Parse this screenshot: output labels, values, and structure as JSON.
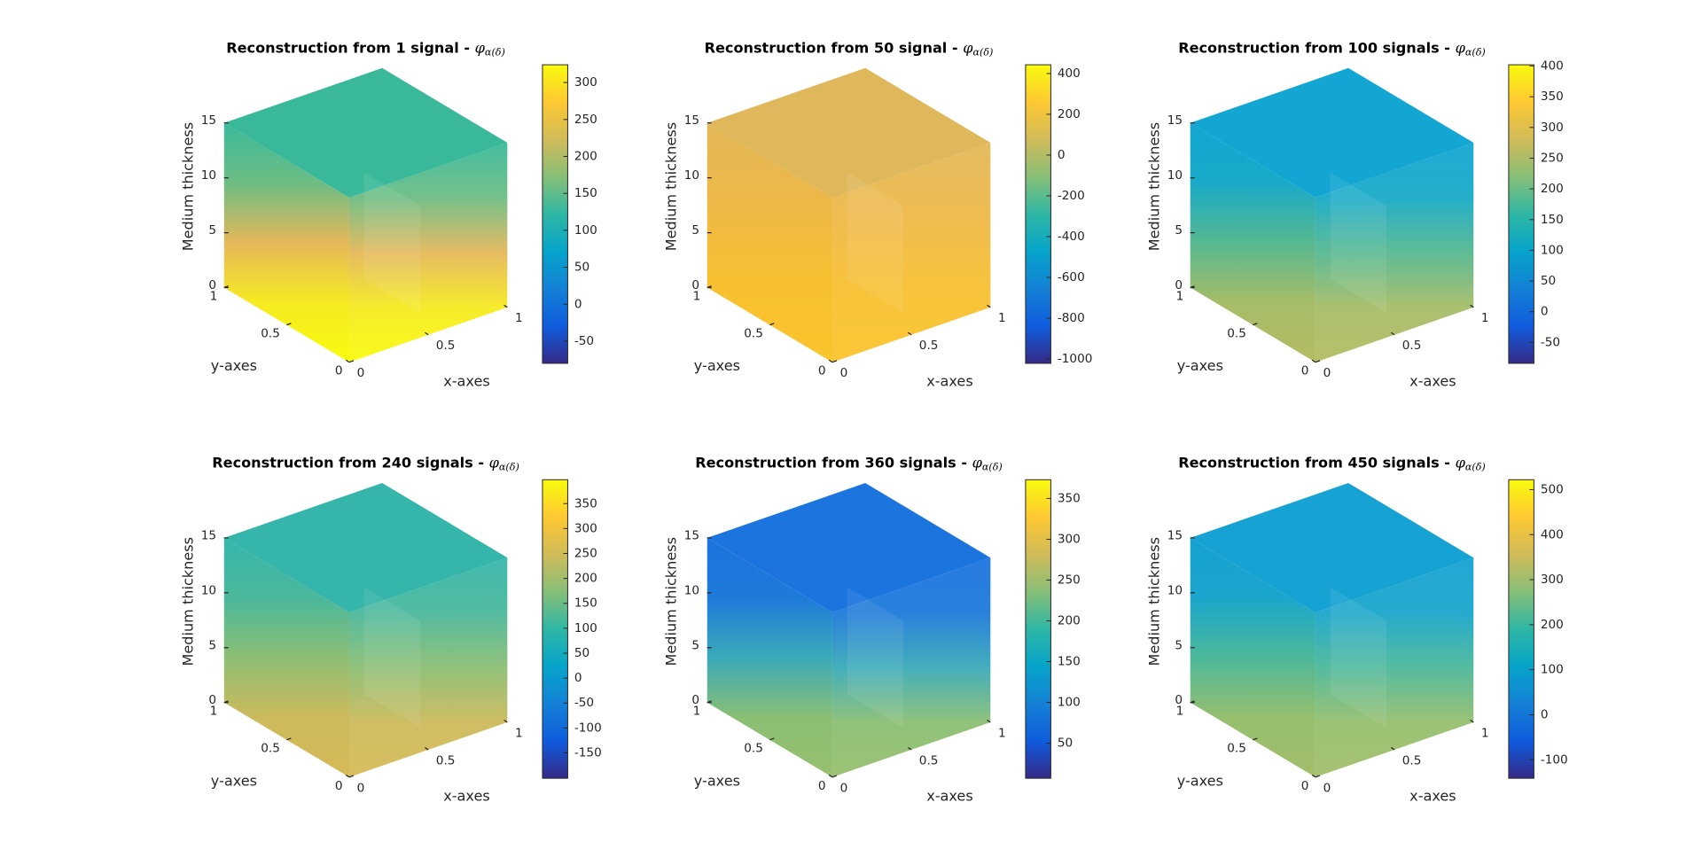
{
  "colormap": [
    "#352a87",
    "#0f5cdd",
    "#1481d6",
    "#06a4ca",
    "#2eb7a4",
    "#87bf77",
    "#d1bb59",
    "#fec832",
    "#f9fb0e"
  ],
  "chart_data": [
    {
      "type": "volume-slice",
      "title": "Reconstruction from 1 signal - ",
      "title_symbol": "φ",
      "title_subscript": "α(δ)",
      "xlabel": "x-axes",
      "ylabel": "y-axes",
      "zlabel": "Medium thickness",
      "xlim": [
        0,
        1
      ],
      "xticks": [
        0,
        0.5,
        1
      ],
      "ylim": [
        0,
        1
      ],
      "yticks": [
        0,
        0.5,
        1
      ],
      "zlim": [
        0,
        15
      ],
      "zticks": [
        0,
        5,
        10,
        15
      ],
      "clim": [
        -80,
        324
      ],
      "cticks": [
        -50,
        0,
        50,
        100,
        150,
        200,
        250,
        300
      ],
      "top_color": "#3ab99a",
      "face_colors": [
        "#3ab99a",
        "#6dbd84",
        "#e4b85a",
        "#f6ea22",
        "#f9fb0e"
      ]
    },
    {
      "type": "volume-slice",
      "title": "Reconstruction from 50 signal - ",
      "title_symbol": "φ",
      "title_subscript": "α(δ)",
      "xlabel": "x-axes",
      "ylabel": "y-axes",
      "zlabel": "Medium thickness",
      "xlim": [
        0,
        1
      ],
      "xticks": [
        0,
        0.5,
        1
      ],
      "ylim": [
        0,
        1
      ],
      "yticks": [
        0,
        0.5,
        1
      ],
      "zlim": [
        0,
        15
      ],
      "zticks": [
        0,
        5,
        10,
        15
      ],
      "clim": [
        -1022,
        443
      ],
      "cticks": [
        -1000,
        -800,
        -600,
        -400,
        -200,
        0,
        200,
        400
      ],
      "top_color": "#dfb85c",
      "face_colors": [
        "#e2b858",
        "#eeb848",
        "#f8c030",
        "#fac42c"
      ]
    },
    {
      "type": "volume-slice",
      "title": "Reconstruction from 100 signals - ",
      "title_symbol": "φ",
      "title_subscript": "α(δ)",
      "xlabel": "x-axes",
      "ylabel": "y-axes",
      "zlabel": "Medium thickness",
      "xlim": [
        0,
        1
      ],
      "xticks": [
        0,
        0.5,
        1
      ],
      "ylim": [
        0,
        1
      ],
      "yticks": [
        0,
        0.5,
        1
      ],
      "zlim": [
        0,
        15
      ],
      "zticks": [
        0,
        5,
        10,
        15
      ],
      "clim": [
        -84,
        402
      ],
      "cticks": [
        -50,
        0,
        50,
        100,
        150,
        200,
        250,
        300,
        350,
        400
      ],
      "top_color": "#13a6d2",
      "face_colors": [
        "#13a6d2",
        "#18aac8",
        "#56b890",
        "#a6bd68",
        "#b4bc62"
      ]
    },
    {
      "type": "volume-slice",
      "title": "Reconstruction from 240 signals - ",
      "title_symbol": "φ",
      "title_subscript": "α(δ)",
      "xlabel": "x-axes",
      "ylabel": "y-axes",
      "zlabel": "Medium thickness",
      "xlim": [
        0,
        1
      ],
      "xticks": [
        0,
        0.5,
        1
      ],
      "ylim": [
        0,
        1
      ],
      "yticks": [
        0,
        0.5,
        1
      ],
      "zlim": [
        0,
        15
      ],
      "zticks": [
        0,
        5,
        10,
        15
      ],
      "clim": [
        -201,
        398
      ],
      "cticks": [
        -150,
        -100,
        -50,
        0,
        50,
        100,
        150,
        200,
        250,
        300,
        350
      ],
      "top_color": "#36b6aa",
      "face_colors": [
        "#36b6aa",
        "#4ab89c",
        "#8cbe74",
        "#ccba5c",
        "#d6ba58"
      ]
    },
    {
      "type": "volume-slice",
      "title": "Reconstruction from 360 signals - ",
      "title_symbol": "φ",
      "title_subscript": "α(δ)",
      "xlabel": "x-axes",
      "ylabel": "y-axes",
      "zlabel": "Medium thickness",
      "xlim": [
        0,
        1
      ],
      "xticks": [
        0,
        0.5,
        1
      ],
      "ylim": [
        0,
        1
      ],
      "yticks": [
        0,
        0.5,
        1
      ],
      "zlim": [
        0,
        15
      ],
      "zticks": [
        0,
        5,
        10,
        15
      ],
      "clim": [
        7,
        373
      ],
      "cticks": [
        50,
        100,
        150,
        200,
        250,
        300,
        350
      ],
      "top_color": "#1c74de",
      "face_colors": [
        "#1c74de",
        "#1e7ada",
        "#3aaab8",
        "#8abf74",
        "#98bf6e"
      ]
    },
    {
      "type": "volume-slice",
      "title": "Reconstruction from 450 signals - ",
      "title_symbol": "φ",
      "title_subscript": "α(δ)",
      "xlabel": "x-axes",
      "ylabel": "y-axes",
      "zlabel": "Medium thickness",
      "xlim": [
        0,
        1
      ],
      "xticks": [
        0,
        0.5,
        1
      ],
      "ylim": [
        0,
        1
      ],
      "yticks": [
        0,
        0.5,
        1
      ],
      "zlim": [
        0,
        15
      ],
      "zticks": [
        0,
        5,
        10,
        15
      ],
      "clim": [
        -141,
        522
      ],
      "cticks": [
        -100,
        0,
        100,
        200,
        300,
        400,
        500
      ],
      "top_color": "#16a2d2",
      "face_colors": [
        "#16a2d2",
        "#1aa6cc",
        "#4cb89a",
        "#96bf6e",
        "#a2be6a"
      ]
    }
  ]
}
